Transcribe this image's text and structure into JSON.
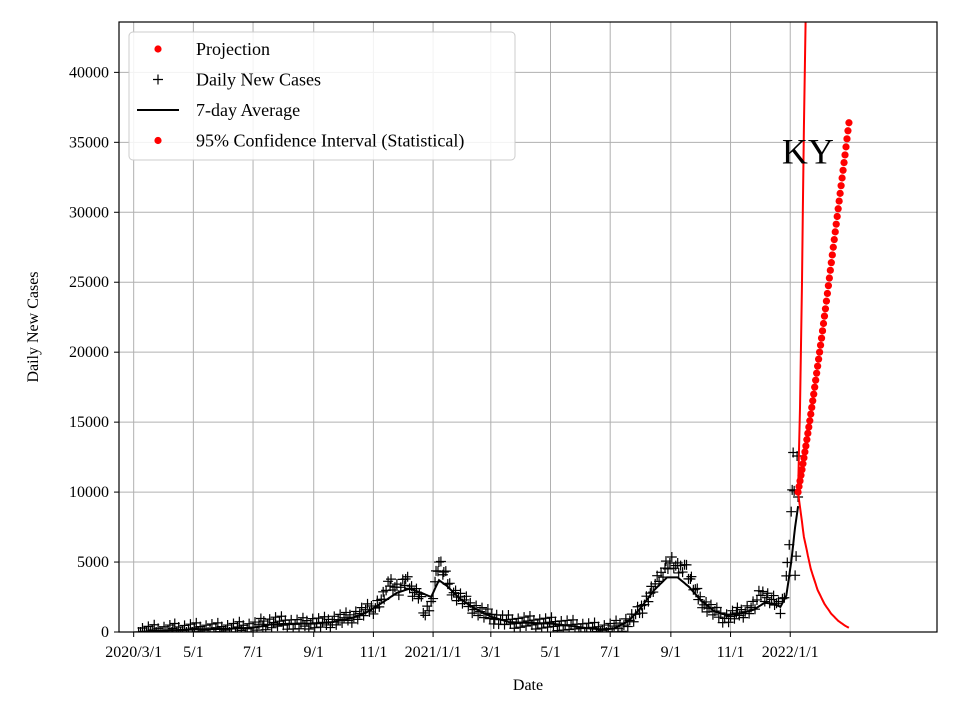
{
  "chart_data": {
    "type": "line",
    "title": "",
    "annotation": "KY",
    "xlabel": "Date",
    "ylabel": "Daily New Cases",
    "xlim": [
      "2020-02-15",
      "2022-05-31"
    ],
    "ylim": [
      0,
      43600
    ],
    "grid": true,
    "legend_position": "top-left",
    "x_ticks": [
      {
        "date": "2020-03-01",
        "label": "2020/3/1"
      },
      {
        "date": "2020-05-01",
        "label": "5/1"
      },
      {
        "date": "2020-07-01",
        "label": "7/1"
      },
      {
        "date": "2020-09-01",
        "label": "9/1"
      },
      {
        "date": "2020-11-01",
        "label": "11/1"
      },
      {
        "date": "2021-01-01",
        "label": "2021/1/1"
      },
      {
        "date": "2021-03-01",
        "label": "3/1"
      },
      {
        "date": "2021-05-01",
        "label": "5/1"
      },
      {
        "date": "2021-07-01",
        "label": "7/1"
      },
      {
        "date": "2021-09-01",
        "label": "9/1"
      },
      {
        "date": "2021-11-01",
        "label": "11/1"
      },
      {
        "date": "2022-01-01",
        "label": "2022/1/1"
      }
    ],
    "y_ticks": [
      0,
      5000,
      10000,
      15000,
      20000,
      25000,
      30000,
      35000,
      40000
    ],
    "legend": [
      {
        "label": "Projection",
        "marker": "dot",
        "color": "#ff0000"
      },
      {
        "label": "Daily New Cases",
        "marker": "plus",
        "color": "#000000"
      },
      {
        "label": "7-day Average",
        "marker": "line",
        "color": "#000000"
      },
      {
        "label": "95% Confidence Interval (Statistical)",
        "marker": "dot",
        "color": "#ff0000"
      }
    ],
    "series": [
      {
        "name": "7-day Average",
        "style": "line",
        "color": "#000000",
        "points": [
          [
            "2020-03-06",
            0
          ],
          [
            "2020-04-01",
            100
          ],
          [
            "2020-05-01",
            180
          ],
          [
            "2020-06-01",
            220
          ],
          [
            "2020-07-01",
            300
          ],
          [
            "2020-07-20",
            550
          ],
          [
            "2020-08-15",
            600
          ],
          [
            "2020-09-01",
            600
          ],
          [
            "2020-09-20",
            700
          ],
          [
            "2020-10-10",
            1000
          ],
          [
            "2020-10-25",
            1400
          ],
          [
            "2020-11-10",
            2100
          ],
          [
            "2020-11-25",
            2800
          ],
          [
            "2020-12-08",
            3100
          ],
          [
            "2020-12-20",
            2800
          ],
          [
            "2020-12-30",
            2500
          ],
          [
            "2021-01-07",
            3700
          ],
          [
            "2021-01-15",
            3300
          ],
          [
            "2021-01-28",
            2400
          ],
          [
            "2021-02-12",
            1700
          ],
          [
            "2021-03-01",
            1100
          ],
          [
            "2021-03-20",
            700
          ],
          [
            "2021-04-10",
            650
          ],
          [
            "2021-05-01",
            600
          ],
          [
            "2021-05-20",
            450
          ],
          [
            "2021-06-10",
            250
          ],
          [
            "2021-06-25",
            180
          ],
          [
            "2021-07-05",
            250
          ],
          [
            "2021-07-20",
            800
          ],
          [
            "2021-08-01",
            1700
          ],
          [
            "2021-08-15",
            3000
          ],
          [
            "2021-08-28",
            3900
          ],
          [
            "2021-09-08",
            3900
          ],
          [
            "2021-09-20",
            3200
          ],
          [
            "2021-10-01",
            2300
          ],
          [
            "2021-10-15",
            1500
          ],
          [
            "2021-10-28",
            1200
          ],
          [
            "2021-11-10",
            1300
          ],
          [
            "2021-11-25",
            1600
          ],
          [
            "2021-12-06",
            2100
          ],
          [
            "2021-12-15",
            2000
          ],
          [
            "2021-12-22",
            1800
          ],
          [
            "2021-12-28",
            2600
          ],
          [
            "2022-01-02",
            5000
          ],
          [
            "2022-01-06",
            7500
          ],
          [
            "2022-01-09",
            9000
          ]
        ]
      },
      {
        "name": "Daily New Cases",
        "style": "plus",
        "color": "#000000",
        "points": [
          [
            "2020-03-06",
            0
          ],
          [
            "2020-03-18",
            50
          ],
          [
            "2020-03-30",
            100
          ],
          [
            "2020-04-10",
            150
          ],
          [
            "2020-04-22",
            200
          ],
          [
            "2020-05-04",
            200
          ],
          [
            "2020-05-16",
            220
          ],
          [
            "2020-05-28",
            200
          ],
          [
            "2020-06-09",
            240
          ],
          [
            "2020-06-21",
            300
          ],
          [
            "2020-07-03",
            350
          ],
          [
            "2020-07-12",
            600
          ],
          [
            "2020-07-24",
            700
          ],
          [
            "2020-08-05",
            650
          ],
          [
            "2020-08-17",
            500
          ],
          [
            "2020-08-29",
            700
          ],
          [
            "2020-09-10",
            600
          ],
          [
            "2020-09-22",
            850
          ],
          [
            "2020-10-04",
            950
          ],
          [
            "2020-10-14",
            1200
          ],
          [
            "2020-10-24",
            1500
          ],
          [
            "2020-11-03",
            1800
          ],
          [
            "2020-11-12",
            2600
          ],
          [
            "2020-11-19",
            3600
          ],
          [
            "2020-11-27",
            3000
          ],
          [
            "2020-12-04",
            3700
          ],
          [
            "2020-12-11",
            3000
          ],
          [
            "2020-12-18",
            2700
          ],
          [
            "2020-12-24",
            1100
          ],
          [
            "2020-12-30",
            2000
          ],
          [
            "2021-01-04",
            4100
          ],
          [
            "2021-01-07",
            5000
          ],
          [
            "2021-01-12",
            4200
          ],
          [
            "2021-01-18",
            3300
          ],
          [
            "2021-01-25",
            2600
          ],
          [
            "2021-02-02",
            2200
          ],
          [
            "2021-02-12",
            1700
          ],
          [
            "2021-02-22",
            1300
          ],
          [
            "2021-03-05",
            1000
          ],
          [
            "2021-03-15",
            800
          ],
          [
            "2021-03-27",
            700
          ],
          [
            "2021-04-08",
            700
          ],
          [
            "2021-04-20",
            650
          ],
          [
            "2021-05-02",
            600
          ],
          [
            "2021-05-14",
            500
          ],
          [
            "2021-05-26",
            400
          ],
          [
            "2021-06-07",
            280
          ],
          [
            "2021-06-19",
            200
          ],
          [
            "2021-07-01",
            250
          ],
          [
            "2021-07-13",
            500
          ],
          [
            "2021-07-25",
            1000
          ],
          [
            "2021-08-03",
            1800
          ],
          [
            "2021-08-12",
            2900
          ],
          [
            "2021-08-20",
            3800
          ],
          [
            "2021-08-27",
            4800
          ],
          [
            "2021-09-02",
            5000
          ],
          [
            "2021-09-09",
            4400
          ],
          [
            "2021-09-15",
            4900
          ],
          [
            "2021-09-22",
            3600
          ],
          [
            "2021-09-29",
            2500
          ],
          [
            "2021-10-08",
            1800
          ],
          [
            "2021-10-18",
            1300
          ],
          [
            "2021-10-28",
            1000
          ],
          [
            "2021-11-08",
            1300
          ],
          [
            "2021-11-18",
            1600
          ],
          [
            "2021-11-26",
            1900
          ],
          [
            "2021-12-02",
            2800
          ],
          [
            "2021-12-09",
            2500
          ],
          [
            "2021-12-16",
            2200
          ],
          [
            "2021-12-22",
            1500
          ],
          [
            "2021-12-26",
            2900
          ],
          [
            "2021-12-29",
            4700
          ],
          [
            "2021-12-31",
            6600
          ],
          [
            "2022-01-02",
            8600
          ],
          [
            "2022-01-03",
            9800
          ],
          [
            "2022-01-04",
            13100
          ],
          [
            "2022-01-05",
            10000
          ],
          [
            "2022-01-06",
            3600
          ],
          [
            "2022-01-07",
            5600
          ],
          [
            "2022-01-08",
            12400
          ],
          [
            "2022-01-09",
            10100
          ]
        ]
      },
      {
        "name": "Projection",
        "style": "dots",
        "color": "#ff0000",
        "points": [
          [
            "2022-01-09",
            10000
          ],
          [
            "2022-01-13",
            11600
          ],
          [
            "2022-01-17",
            13300
          ],
          [
            "2022-01-21",
            15100
          ],
          [
            "2022-01-25",
            17000
          ],
          [
            "2022-01-29",
            19000
          ],
          [
            "2022-02-02",
            21000
          ],
          [
            "2022-02-06",
            23100
          ],
          [
            "2022-02-10",
            25300
          ],
          [
            "2022-02-14",
            27500
          ],
          [
            "2022-02-18",
            29700
          ],
          [
            "2022-02-22",
            31900
          ],
          [
            "2022-02-26",
            34100
          ],
          [
            "2022-03-02",
            36400
          ]
        ]
      },
      {
        "name": "95% Confidence Interval (Statistical)",
        "style": "line",
        "color": "#ff0000",
        "points": [
          [
            "2022-01-09",
            10000
          ],
          [
            "2022-01-11",
            16000
          ],
          [
            "2022-01-13",
            25000
          ],
          [
            "2022-01-15",
            36000
          ],
          [
            "2022-01-17",
            45000
          ]
        ]
      },
      {
        "name": "95% Confidence Interval (Statistical)",
        "style": "line",
        "color": "#ff0000",
        "points": [
          [
            "2022-01-09",
            10000
          ],
          [
            "2022-01-15",
            6800
          ],
          [
            "2022-01-22",
            4500
          ],
          [
            "2022-01-29",
            3000
          ],
          [
            "2022-02-05",
            2000
          ],
          [
            "2022-02-12",
            1300
          ],
          [
            "2022-02-19",
            800
          ],
          [
            "2022-02-26",
            450
          ],
          [
            "2022-03-02",
            300
          ]
        ]
      }
    ]
  }
}
